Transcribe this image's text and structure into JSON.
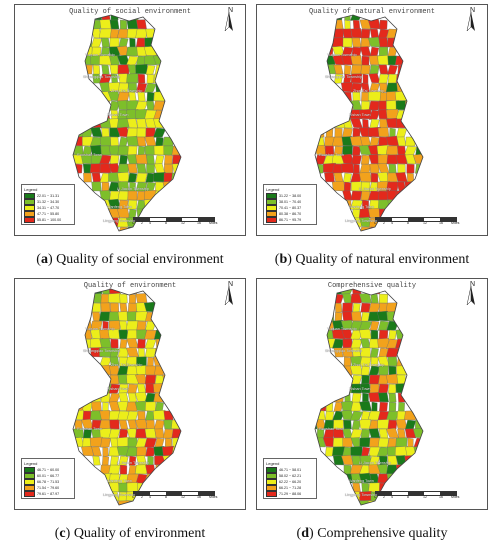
{
  "panels": [
    {
      "id": "a",
      "map_title": "Quality of social environment",
      "caption_letter": "a",
      "caption_text": " Quality of social environment",
      "legend_title": "Legend",
      "legend": [
        {
          "label": "22.01 ~ 31.31",
          "color": "#1a7a1a"
        },
        {
          "label": "31.32 ~ 34.30",
          "color": "#7dbf2a"
        },
        {
          "label": "34.31 ~ 47.70",
          "color": "#ecee1a"
        },
        {
          "label": "47.71 ~ 55.80",
          "color": "#f2a21c"
        },
        {
          "label": "55.81 ~ 100.00",
          "color": "#e3291c"
        }
      ],
      "places": [
        "Shuangqiao Township",
        "Yuquan Township",
        "Zhou Tai Township",
        "Xishan Town",
        "Ruoshan Town",
        "Li Jiacun Township",
        "Wanfeng Town",
        "Lingyang Township"
      ]
    },
    {
      "id": "b",
      "map_title": "Quality of natural environment",
      "caption_letter": "b",
      "caption_text": " Quality of natural environment",
      "legend_title": "Legend",
      "legend": [
        {
          "label": "31.22 ~ 38.00",
          "color": "#1a7a1a"
        },
        {
          "label": "38.01 ~ 70.40",
          "color": "#7dbf2a"
        },
        {
          "label": "70.41 ~ 80.37",
          "color": "#ecee1a"
        },
        {
          "label": "80.38 ~ 86.70",
          "color": "#f2a21c"
        },
        {
          "label": "86.71 ~ 95.79",
          "color": "#e3291c"
        }
      ],
      "places": [
        "Shuangqiao Township",
        "Yuquan Township",
        "Zhou Tai Township",
        "Xishan Town",
        "Ruoshan Town",
        "Li Jiacun Township",
        "Wanfeng Town",
        "Lingyang Township"
      ]
    },
    {
      "id": "c",
      "map_title": "Quality of environment",
      "caption_letter": "c",
      "caption_text": " Quality of environment",
      "legend_title": "Legend",
      "legend": [
        {
          "label": "46.71 ~ 60.00",
          "color": "#1a7a1a"
        },
        {
          "label": "60.01 ~ 66.77",
          "color": "#7dbf2a"
        },
        {
          "label": "66.78 ~ 71.53",
          "color": "#ecee1a"
        },
        {
          "label": "71.54 ~ 79.60",
          "color": "#f2a21c"
        },
        {
          "label": "79.61 ~ 87.97",
          "color": "#e3291c"
        }
      ],
      "places": [
        "Shuangqiao Township",
        "Yuquan Township",
        "Zhou Tai Township",
        "Xishan Town",
        "Ruoshan Town",
        "Li Jiacun Township",
        "Wanfeng Town",
        "Lingyang Township"
      ]
    },
    {
      "id": "d",
      "map_title": "Comprehensive quality",
      "caption_letter": "d",
      "caption_text": " Comprehensive quality",
      "legend_title": "Legend",
      "legend": [
        {
          "label": "46.71 ~ 58.01",
          "color": "#1a7a1a"
        },
        {
          "label": "58.02 ~ 62.21",
          "color": "#7dbf2a"
        },
        {
          "label": "62.22 ~ 66.20",
          "color": "#ecee1a"
        },
        {
          "label": "66.21 ~ 71.28",
          "color": "#f2a21c"
        },
        {
          "label": "71.29 ~ 88.06",
          "color": "#e3291c"
        }
      ],
      "places": [
        "Shuangqiao Township",
        "Yuquan Township",
        "Zhou Tai Township",
        "Xishan Town",
        "Ruoshan Town",
        "Li Jiacun Township",
        "Wanfeng Town",
        "Lingyang Township"
      ]
    }
  ],
  "north_label": "N",
  "scale_labels": [
    "0",
    "2",
    "4",
    "8",
    "12",
    "16"
  ],
  "scale_unit": "Miles",
  "icons": {
    "north_arrow": "north-arrow-icon"
  }
}
